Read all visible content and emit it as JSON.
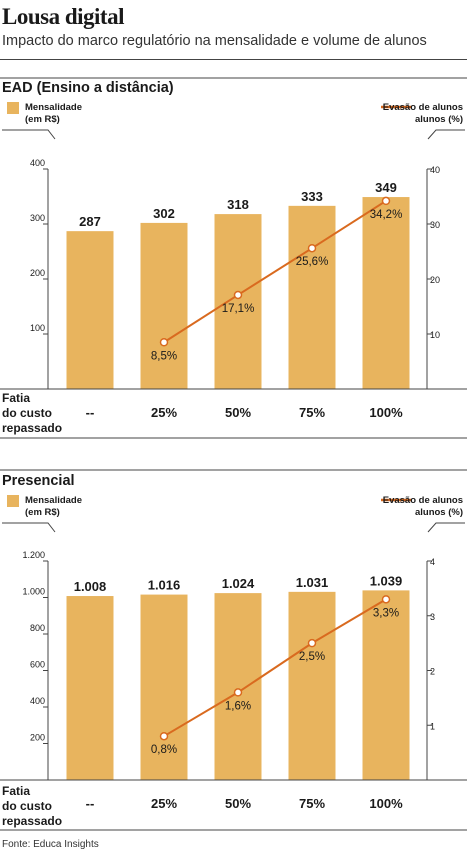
{
  "title": "Lousa digital",
  "subtitle": "Impacto do marco regulatório na mensalidade e volume de alunos",
  "source": "Fonte: Educa Insights",
  "colors": {
    "bar": "#e8b45e",
    "line": "#d96a1f",
    "text": "#1a1a1a",
    "rule": "#444444"
  },
  "chart_data": [
    {
      "type": "bar",
      "title": "EAD (Ensino a distância)",
      "row_label": "Fatia do custo repassado",
      "categories": [
        "--",
        "25%",
        "50%",
        "75%",
        "100%"
      ],
      "series": [
        {
          "name": "Mensalidade (em R$)",
          "type": "bar",
          "axis": "left",
          "values": [
            287,
            302,
            318,
            333,
            349
          ],
          "labels": [
            "287",
            "302",
            "318",
            "333",
            "349"
          ]
        },
        {
          "name": "Evasão de alunos (%)",
          "type": "line",
          "axis": "right",
          "values": [
            null,
            8.5,
            17.1,
            25.6,
            34.2
          ],
          "labels": [
            "",
            "8,5%",
            "17,1%",
            "25,6%",
            "34,2%"
          ]
        }
      ],
      "left_axis": {
        "ylim": [
          0,
          400
        ],
        "ticks": [
          100,
          200,
          300,
          400
        ],
        "tick_labels": [
          "100",
          "200",
          "300",
          "400"
        ]
      },
      "right_axis": {
        "ylim": [
          0,
          40
        ],
        "ticks": [
          10,
          20,
          30,
          40
        ],
        "tick_labels": [
          "10",
          "20",
          "30",
          "40"
        ]
      },
      "legend": "top"
    },
    {
      "type": "bar",
      "title": "Presencial",
      "row_label": "Fatia do custo repassado",
      "categories": [
        "--",
        "25%",
        "50%",
        "75%",
        "100%"
      ],
      "series": [
        {
          "name": "Mensalidade (em R$)",
          "type": "bar",
          "axis": "left",
          "values": [
            1008,
            1016,
            1024,
            1031,
            1039
          ],
          "labels": [
            "1.008",
            "1.016",
            "1.024",
            "1.031",
            "1.039"
          ]
        },
        {
          "name": "Evasão de alunos (%)",
          "type": "line",
          "axis": "right",
          "values": [
            null,
            0.8,
            1.6,
            2.5,
            3.3
          ],
          "labels": [
            "",
            "0,8%",
            "1,6%",
            "2,5%",
            "3,3%"
          ]
        }
      ],
      "left_axis": {
        "ylim": [
          0,
          1200
        ],
        "ticks": [
          200,
          400,
          600,
          800,
          1000,
          1200
        ],
        "tick_labels": [
          "200",
          "400",
          "600",
          "800",
          "1.000",
          "1.200"
        ]
      },
      "right_axis": {
        "ylim": [
          0,
          4
        ],
        "ticks": [
          1,
          2,
          3,
          4
        ],
        "tick_labels": [
          "1",
          "2",
          "3",
          "4"
        ]
      },
      "legend": "top"
    }
  ]
}
